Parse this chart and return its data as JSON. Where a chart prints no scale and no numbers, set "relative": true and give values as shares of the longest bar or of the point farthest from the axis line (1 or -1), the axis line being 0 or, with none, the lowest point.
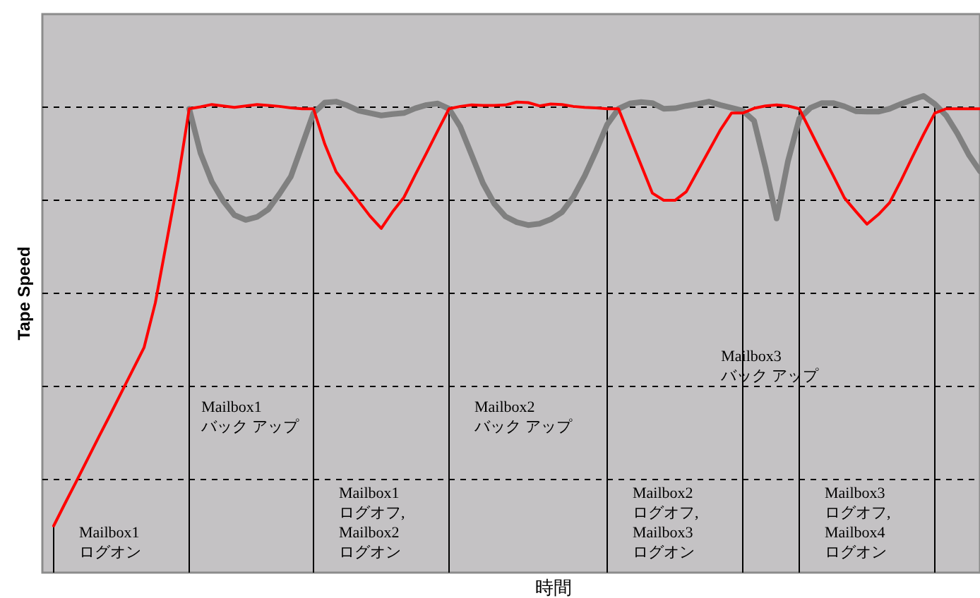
{
  "chart_data": {
    "type": "line",
    "relative": true,
    "xlabel": "時間",
    "ylabel": "Tape Speed",
    "line_style": "solid",
    "categories": [
      null,
      null,
      null,
      null,
      null,
      null,
      null,
      null,
      null,
      null,
      null,
      null,
      null,
      null,
      null,
      null,
      null,
      null,
      null,
      null,
      null,
      null,
      null,
      null,
      null,
      null,
      null,
      null,
      null,
      null,
      null,
      null,
      null,
      null,
      null,
      null,
      null,
      null,
      null,
      null,
      null,
      null,
      null,
      null,
      null,
      null,
      null,
      null,
      null,
      null,
      null,
      null,
      null,
      null,
      null,
      null,
      null,
      null,
      null,
      null,
      null,
      null,
      null,
      null,
      null,
      null,
      null,
      null,
      null,
      null,
      null,
      null,
      null,
      null,
      null,
      null,
      null,
      null,
      null,
      null,
      null,
      null,
      null,
      null
    ],
    "series": [
      {
        "color": "#ff0000",
        "values": [
          null,
          0.098,
          0.145,
          0.191,
          0.238,
          0.285,
          0.331,
          0.378,
          0.425,
          0.472,
          0.566,
          0.694,
          0.823,
          0.973,
          0.977,
          0.982,
          0.979,
          0.976,
          0.979,
          0.982,
          0.98,
          0.978,
          0.975,
          0.973,
          0.973,
          0.899,
          0.841,
          0.81,
          0.779,
          0.748,
          0.722,
          0.757,
          0.787,
          0.834,
          0.88,
          0.927,
          0.973,
          0.978,
          0.981,
          0.98,
          0.98,
          0.981,
          0.987,
          0.986,
          0.979,
          0.983,
          0.982,
          0.978,
          0.976,
          0.975,
          0.973,
          0.973,
          0.914,
          0.855,
          0.796,
          0.781,
          0.781,
          0.799,
          0.842,
          0.885,
          0.928,
          0.964,
          0.964,
          0.974,
          0.979,
          0.981,
          0.979,
          0.973,
          0.926,
          0.879,
          0.833,
          0.786,
          0.758,
          0.731,
          0.751,
          0.776,
          0.822,
          0.871,
          0.919,
          0.964,
          0.973,
          0.973,
          0.973,
          0.973
        ]
      },
      {
        "color": "#808080",
        "values": [
          null,
          null,
          null,
          null,
          null,
          null,
          null,
          null,
          null,
          null,
          null,
          null,
          null,
          0.973,
          0.88,
          0.82,
          0.78,
          0.75,
          0.74,
          0.746,
          0.762,
          0.795,
          0.831,
          0.897,
          0.964,
          0.986,
          0.988,
          0.98,
          0.969,
          0.964,
          0.959,
          0.962,
          0.964,
          0.974,
          0.981,
          0.984,
          0.973,
          0.935,
          0.876,
          0.817,
          0.774,
          0.747,
          0.735,
          0.729,
          0.732,
          0.741,
          0.756,
          0.788,
          0.832,
          0.884,
          0.94,
          0.973,
          0.984,
          0.987,
          0.985,
          0.973,
          0.974,
          0.979,
          0.983,
          0.988,
          0.981,
          0.975,
          0.969,
          0.948,
          0.851,
          0.743,
          0.863,
          0.952,
          0.975,
          0.985,
          0.985,
          0.978,
          0.968,
          0.967,
          0.967,
          0.973,
          0.983,
          0.992,
          1,
          0.983,
          0.959,
          0.921,
          0.877,
          0.842
        ]
      }
    ],
    "grid": true,
    "annotations": [
      "Mailbox1\nログオン",
      "Mailbox1\nバック アップ",
      "Mailbox1\nログオフ,\nMailbox2\nログオン",
      "Mailbox2\nバック アップ",
      "Mailbox2\nログオフ,\nMailbox3\nログオン",
      "Mailbox3\nバック アップ",
      "Mailbox3\nログオフ,\nMailbox4\nログオン"
    ]
  }
}
